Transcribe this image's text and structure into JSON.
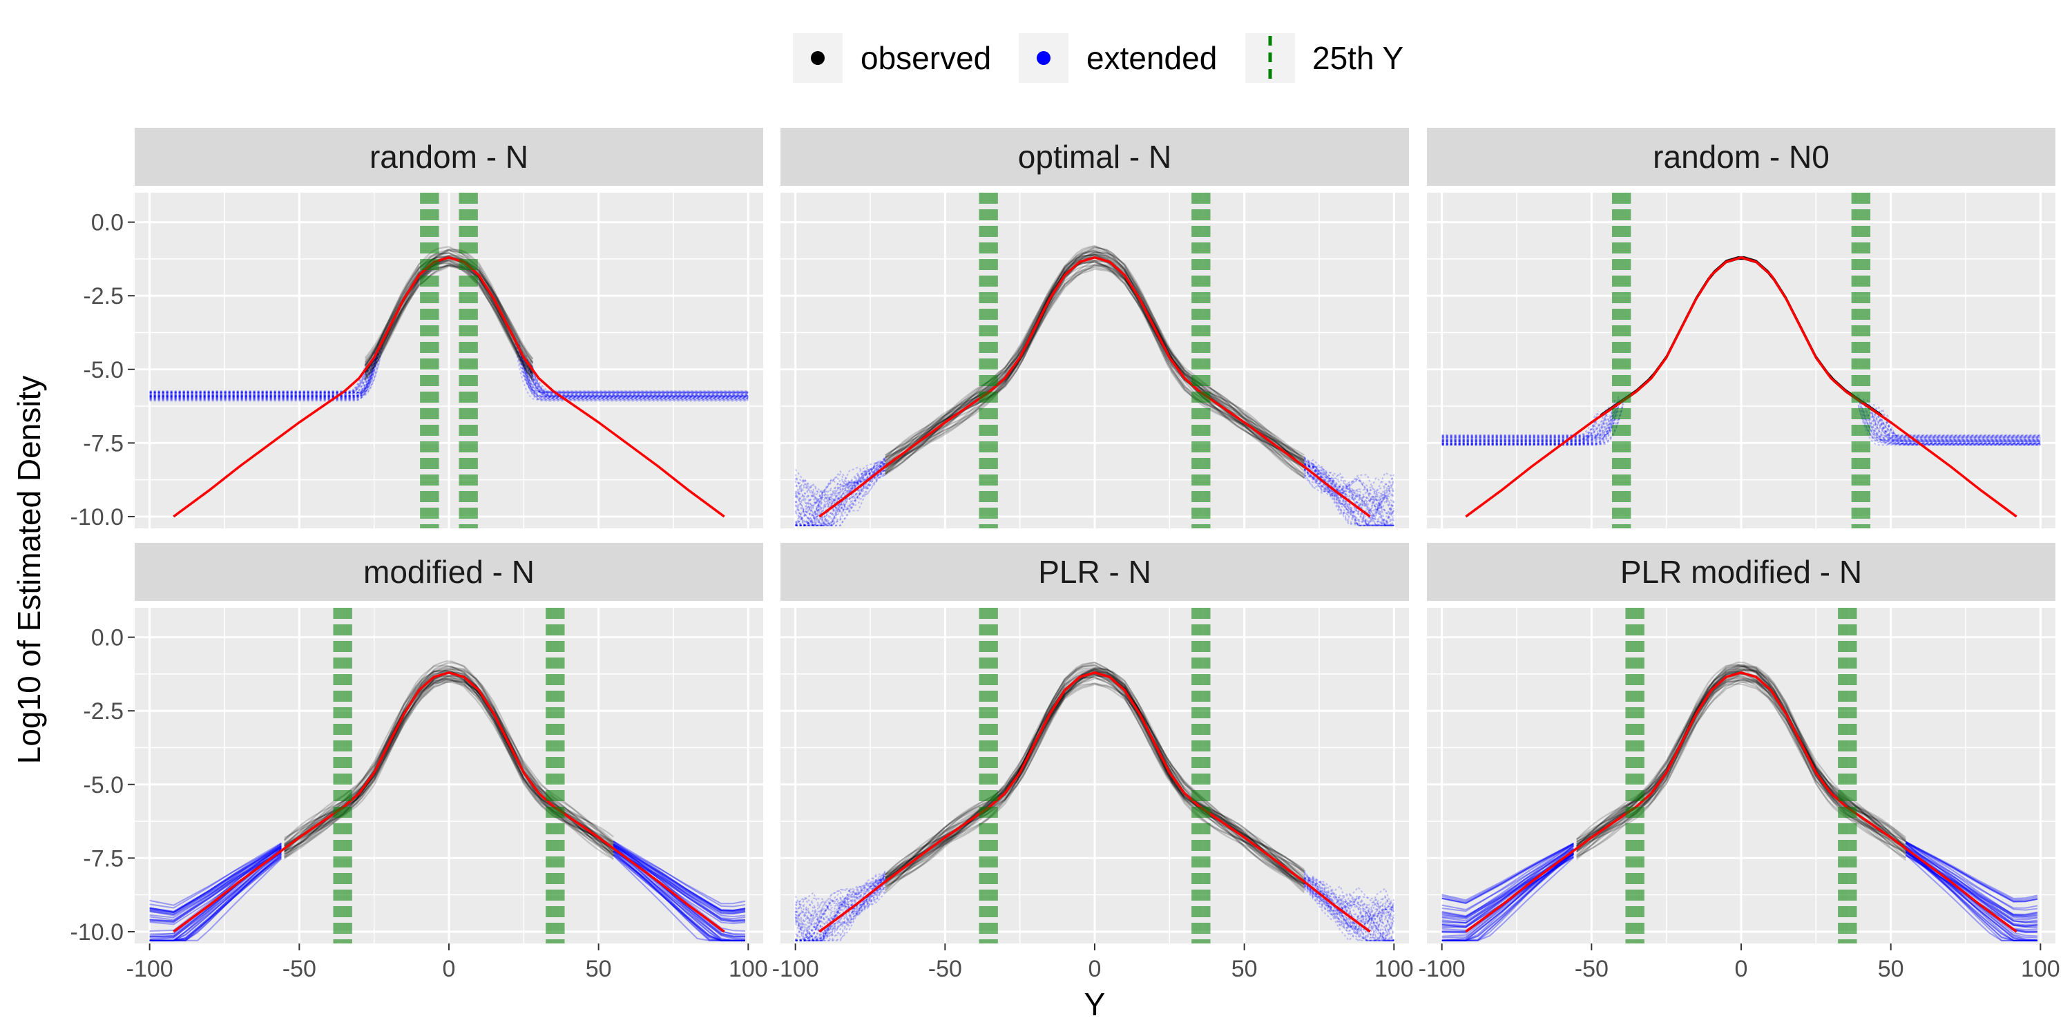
{
  "chart_data": {
    "type": "line",
    "xlabel": "Y",
    "ylabel": "Log10 of Estimated Density",
    "xlim": [
      -105,
      105
    ],
    "ylim": [
      -10.4,
      1.0
    ],
    "x_ticks": [
      -100,
      -50,
      0,
      50,
      100
    ],
    "x_tick_labels": [
      "-100",
      "-50",
      "0",
      "50",
      "100"
    ],
    "y_ticks": [
      0.0,
      -2.5,
      -5.0,
      -7.5,
      -10.0
    ],
    "y_tick_labels": [
      "0.0",
      "-2.5",
      "-5.0",
      "-7.5",
      "-10.0"
    ],
    "legend": {
      "position": "top",
      "entries": [
        {
          "label": "observed",
          "color": "#000000",
          "marker": "point"
        },
        {
          "label": "extended",
          "color": "#0000ff",
          "marker": "point"
        },
        {
          "label": "25th Y",
          "color": "#008000",
          "marker": "dashed-vline"
        }
      ]
    },
    "colors": {
      "observed": "#000000",
      "extended": "#0000ff",
      "true_density": "#ff0000",
      "quantile_line": "#008000",
      "panel_bg": "#ebebeb",
      "strip_bg": "#d9d9d9",
      "grid": "#ffffff"
    },
    "true_density": {
      "name": "true log10 density",
      "x": [
        -92,
        -80,
        -70,
        -60,
        -50,
        -40,
        -35,
        -30,
        -25,
        -20,
        -15,
        -10,
        -5,
        0,
        5,
        10,
        15,
        20,
        25,
        30,
        35,
        40,
        50,
        60,
        70,
        80,
        92
      ],
      "y": [
        -10.0,
        -9.1,
        -8.3,
        -7.55,
        -6.8,
        -6.1,
        -5.75,
        -5.3,
        -4.6,
        -3.6,
        -2.6,
        -1.8,
        -1.35,
        -1.2,
        -1.35,
        -1.8,
        -2.6,
        -3.6,
        -4.6,
        -5.3,
        -5.75,
        -6.1,
        -6.8,
        -7.55,
        -8.3,
        -9.1,
        -10.0
      ]
    },
    "panels": [
      {
        "title": "random - N",
        "quantile_y": [
          -6.5,
          6.5
        ],
        "observed_range": [
          -28,
          28
        ],
        "extended_style": "flat",
        "extended_floor": -5.9
      },
      {
        "title": "optimal - N",
        "quantile_y": [
          -35.5,
          35.5
        ],
        "observed_range": [
          -70,
          70
        ],
        "extended_style": "wiggle",
        "extended_floor": -8.2
      },
      {
        "title": "random - N0",
        "quantile_y": [
          -40,
          40
        ],
        "observed_range": [
          -47,
          47
        ],
        "extended_style": "flat-noisy",
        "extended_floor": -7.4
      },
      {
        "title": "modified - N",
        "quantile_y": [
          -35.5,
          35.5
        ],
        "observed_range": [
          -55,
          55
        ],
        "extended_style": "fan",
        "extended_floor": -9.0
      },
      {
        "title": "PLR - N",
        "quantile_y": [
          -35.5,
          35.5
        ],
        "observed_range": [
          -70,
          70
        ],
        "extended_style": "wiggle",
        "extended_floor": -8.2
      },
      {
        "title": "PLR modified - N",
        "quantile_y": [
          -35.5,
          35.5
        ],
        "observed_range": [
          -55,
          55
        ],
        "extended_style": "fan",
        "extended_floor": -9.0
      }
    ]
  }
}
